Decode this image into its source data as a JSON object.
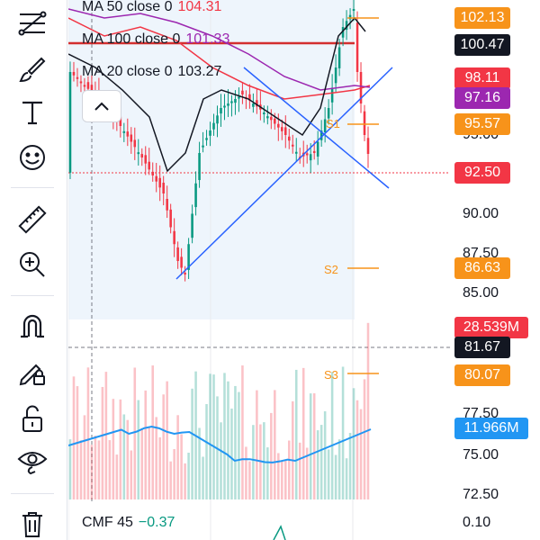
{
  "toolbar": {
    "tools": [
      {
        "icon": "trend-line-tools-icon"
      },
      {
        "icon": "brush-icon"
      },
      {
        "icon": "text-tool-icon"
      },
      {
        "icon": "emoji-icon"
      },
      {
        "icon": "ruler-icon"
      },
      {
        "icon": "zoom-in-icon"
      },
      {
        "icon": "magnet-icon"
      },
      {
        "icon": "lock-drawings-icon"
      },
      {
        "icon": "unlock-icon"
      },
      {
        "icon": "eye-icon"
      },
      {
        "icon": "trash-icon"
      }
    ]
  },
  "legend": {
    "ma50": {
      "label": "MA 50 close 0",
      "value": "104.31",
      "color": "#f23645"
    },
    "ma100": {
      "label": "MA 100 close 0",
      "value": "101.33",
      "color": "#9c27b0"
    },
    "ma20": {
      "label": "MA 20 close 0",
      "value": "103.27",
      "color": "#131722"
    }
  },
  "indicator": {
    "label": "CMF 45",
    "value": "−0.37"
  },
  "levels": {
    "s1": "S1",
    "s2": "S2",
    "s3": "S3"
  },
  "price_axis": {
    "ticks": [
      "95.00",
      "90.00",
      "87.50",
      "85.00",
      "77.50",
      "75.00",
      "72.50",
      "0.10"
    ]
  },
  "badges": [
    {
      "text": "102.13",
      "color": "#f7931a"
    },
    {
      "text": "100.47",
      "color": "#131722"
    },
    {
      "text": "98.11",
      "color": "#f23645"
    },
    {
      "text": "97.16",
      "color": "#9c27b0"
    },
    {
      "text": "95.57",
      "color": "#f7931a"
    },
    {
      "text": "92.50",
      "color": "#f23645"
    },
    {
      "text": "86.63",
      "color": "#f7931a"
    },
    {
      "text": "28.539M",
      "color": "#f23645"
    },
    {
      "text": "81.67",
      "color": "#131722"
    },
    {
      "text": "80.07",
      "color": "#f7931a"
    },
    {
      "text": "11.966M",
      "color": "#2196f3"
    }
  ],
  "colors": {
    "up": "#089981",
    "down": "#f23645",
    "support": "#f7931a",
    "trendline": "#2962ff"
  }
}
